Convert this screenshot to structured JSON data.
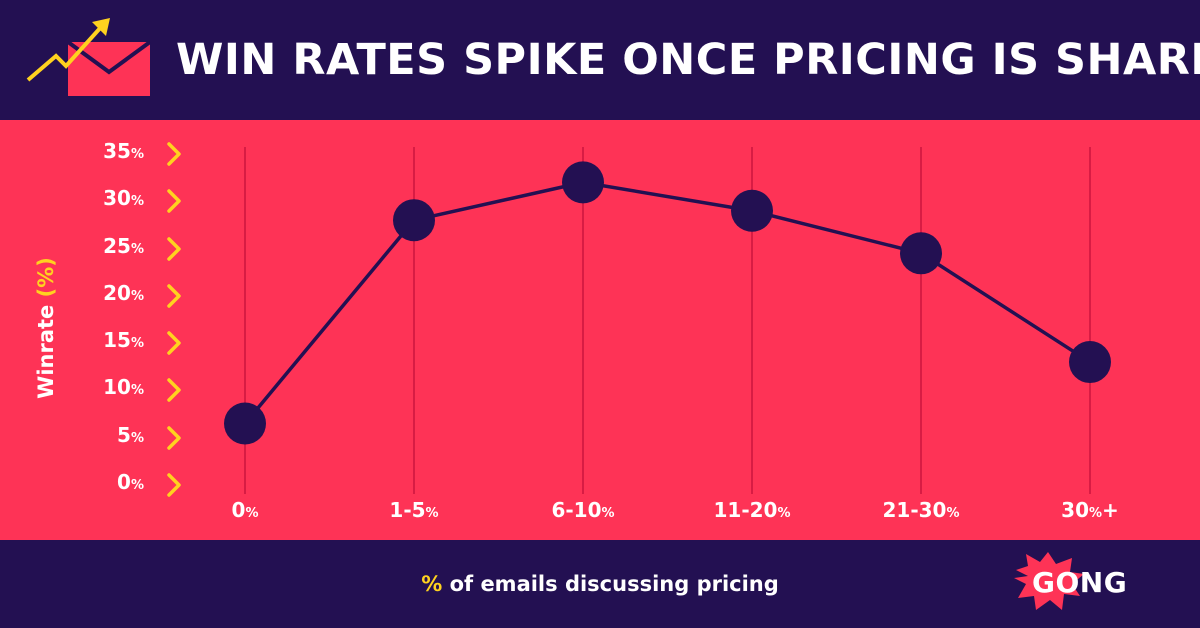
{
  "header": {
    "title": "WIN RATES SPIKE ONCE PRICING IS SHARED",
    "icon": "envelope-trend-arrow-icon"
  },
  "chart_data": {
    "type": "line",
    "title": "WIN RATES SPIKE ONCE PRICING IS SHARED",
    "categories": [
      "0%",
      "1-5%",
      "6-10%",
      "11-20%",
      "21-30%",
      "30%+"
    ],
    "category_labels": [
      {
        "n": "0",
        "p": "%",
        "s": ""
      },
      {
        "n": "1-5",
        "p": "%",
        "s": ""
      },
      {
        "n": "6-10",
        "p": "%",
        "s": ""
      },
      {
        "n": "11-20",
        "p": "%",
        "s": ""
      },
      {
        "n": "21-30",
        "p": "%",
        "s": ""
      },
      {
        "n": "30",
        "p": "%",
        "s": "+"
      }
    ],
    "series": [
      {
        "name": "Winrate",
        "values": [
          6.5,
          28,
          32,
          29,
          24.5,
          13
        ]
      }
    ],
    "yticks": [
      0,
      5,
      10,
      15,
      20,
      25,
      30,
      35
    ],
    "ytick_suffix": "%",
    "ylim": [
      0,
      35
    ],
    "ylabel": {
      "text": "Winrate ",
      "accent": "(%)"
    },
    "xlabel": {
      "accent": "%",
      "text": " of emails discussing pricing"
    },
    "grid": "vertical"
  },
  "footer": {
    "logo_text": "GONG"
  },
  "colors": {
    "header_bg": "#231052",
    "band_bg": "#fe3356",
    "line": "#231052",
    "marker": "#231052",
    "grid": "#d81c44",
    "chevron": "#ffd21f",
    "accent": "#ffd21f",
    "text": "#ffffff"
  }
}
